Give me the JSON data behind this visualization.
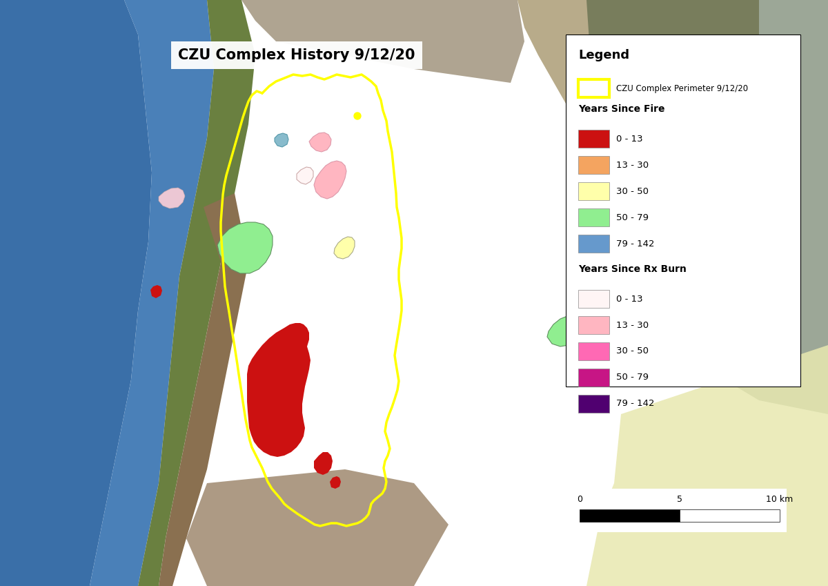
{
  "title": "CZU Complex History 9/12/20",
  "title_fontsize": 15,
  "legend_title": "Legend",
  "perimeter_label": "CZU Complex Perimeter 9/12/20",
  "perimeter_color": "#FFFF00",
  "perimeter_linewidth": 2.2,
  "years_since_fire_label": "Years Since Fire",
  "fire_categories": [
    "0 - 13",
    "13 - 30",
    "30 - 50",
    "50 - 79",
    "79 - 142"
  ],
  "fire_colors": [
    "#CC1111",
    "#F4A460",
    "#FFFFAA",
    "#90EE90",
    "#6699CC"
  ],
  "years_since_rx_label": "Years Since Rx Burn",
  "rx_categories": [
    "0 - 13",
    "13 - 30",
    "30 - 50",
    "50 - 79",
    "79 - 142"
  ],
  "rx_colors": [
    "#FFF5F5",
    "#FFB6C1",
    "#FF69B4",
    "#C71585",
    "#500070"
  ],
  "figsize": [
    12.0,
    8.49
  ],
  "dpi": 100,
  "ocean_color": "#3A6FA8",
  "deep_ocean_color": "#2E5A8E",
  "land_dark_color": "#1A3A18",
  "land_mid_color": "#2A4A28",
  "coast_color": "#5A7A3A",
  "tan_color": "#B8A878",
  "yellow_cream": "#E8E8B0",
  "brown_color": "#7A6040"
}
